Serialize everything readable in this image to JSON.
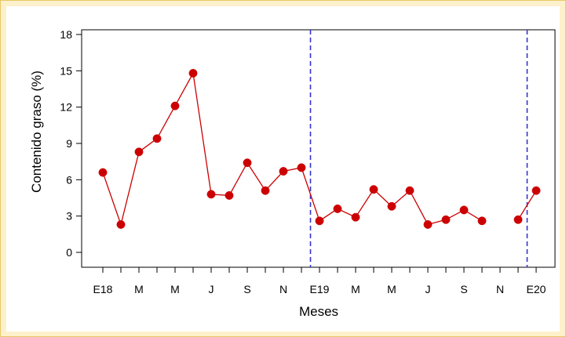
{
  "chart_data": {
    "type": "line",
    "xlabel": "Meses",
    "ylabel": "Contenido graso (%)",
    "ylim": [
      0,
      18
    ],
    "yticks": [
      0,
      3,
      6,
      9,
      12,
      15,
      18
    ],
    "xlim": [
      0,
      26
    ],
    "x_tick_labels": [
      "E18",
      "M",
      "M",
      "J",
      "S",
      "N",
      "E19",
      "M",
      "M",
      "J",
      "S",
      "N",
      "E20"
    ],
    "x_tick_positions": [
      1,
      3,
      5,
      7,
      9,
      11,
      13,
      15,
      17,
      19,
      21,
      23,
      25
    ],
    "minor_tick_positions": [
      1,
      2,
      3,
      4,
      5,
      6,
      7,
      8,
      9,
      10,
      11,
      12,
      13,
      14,
      15,
      16,
      17,
      18,
      19,
      20,
      21,
      22,
      23,
      24,
      25
    ],
    "vlines": [
      12.5,
      24.5
    ],
    "grid": false,
    "legend": "none",
    "series": [
      {
        "color": "#cc0000",
        "segments": [
          {
            "x": [
              1,
              2,
              3,
              4,
              5,
              6,
              7,
              8,
              9,
              10,
              11,
              12,
              13,
              14,
              15,
              16,
              17,
              18,
              19,
              20,
              21,
              22
            ],
            "y": [
              6.6,
              2.3,
              8.3,
              9.4,
              12.1,
              14.8,
              4.8,
              4.7,
              7.4,
              5.1,
              6.7,
              7.0,
              2.6,
              3.6,
              2.9,
              5.2,
              3.8,
              5.1,
              2.3,
              2.7,
              3.5,
              2.6
            ]
          },
          {
            "x": [
              24,
              25
            ],
            "y": [
              2.7,
              5.1
            ]
          }
        ]
      }
    ]
  },
  "colors": {
    "background": "#fdf1cc",
    "series": "#cc0000",
    "vline": "#3333cc",
    "axis": "#000000"
  }
}
